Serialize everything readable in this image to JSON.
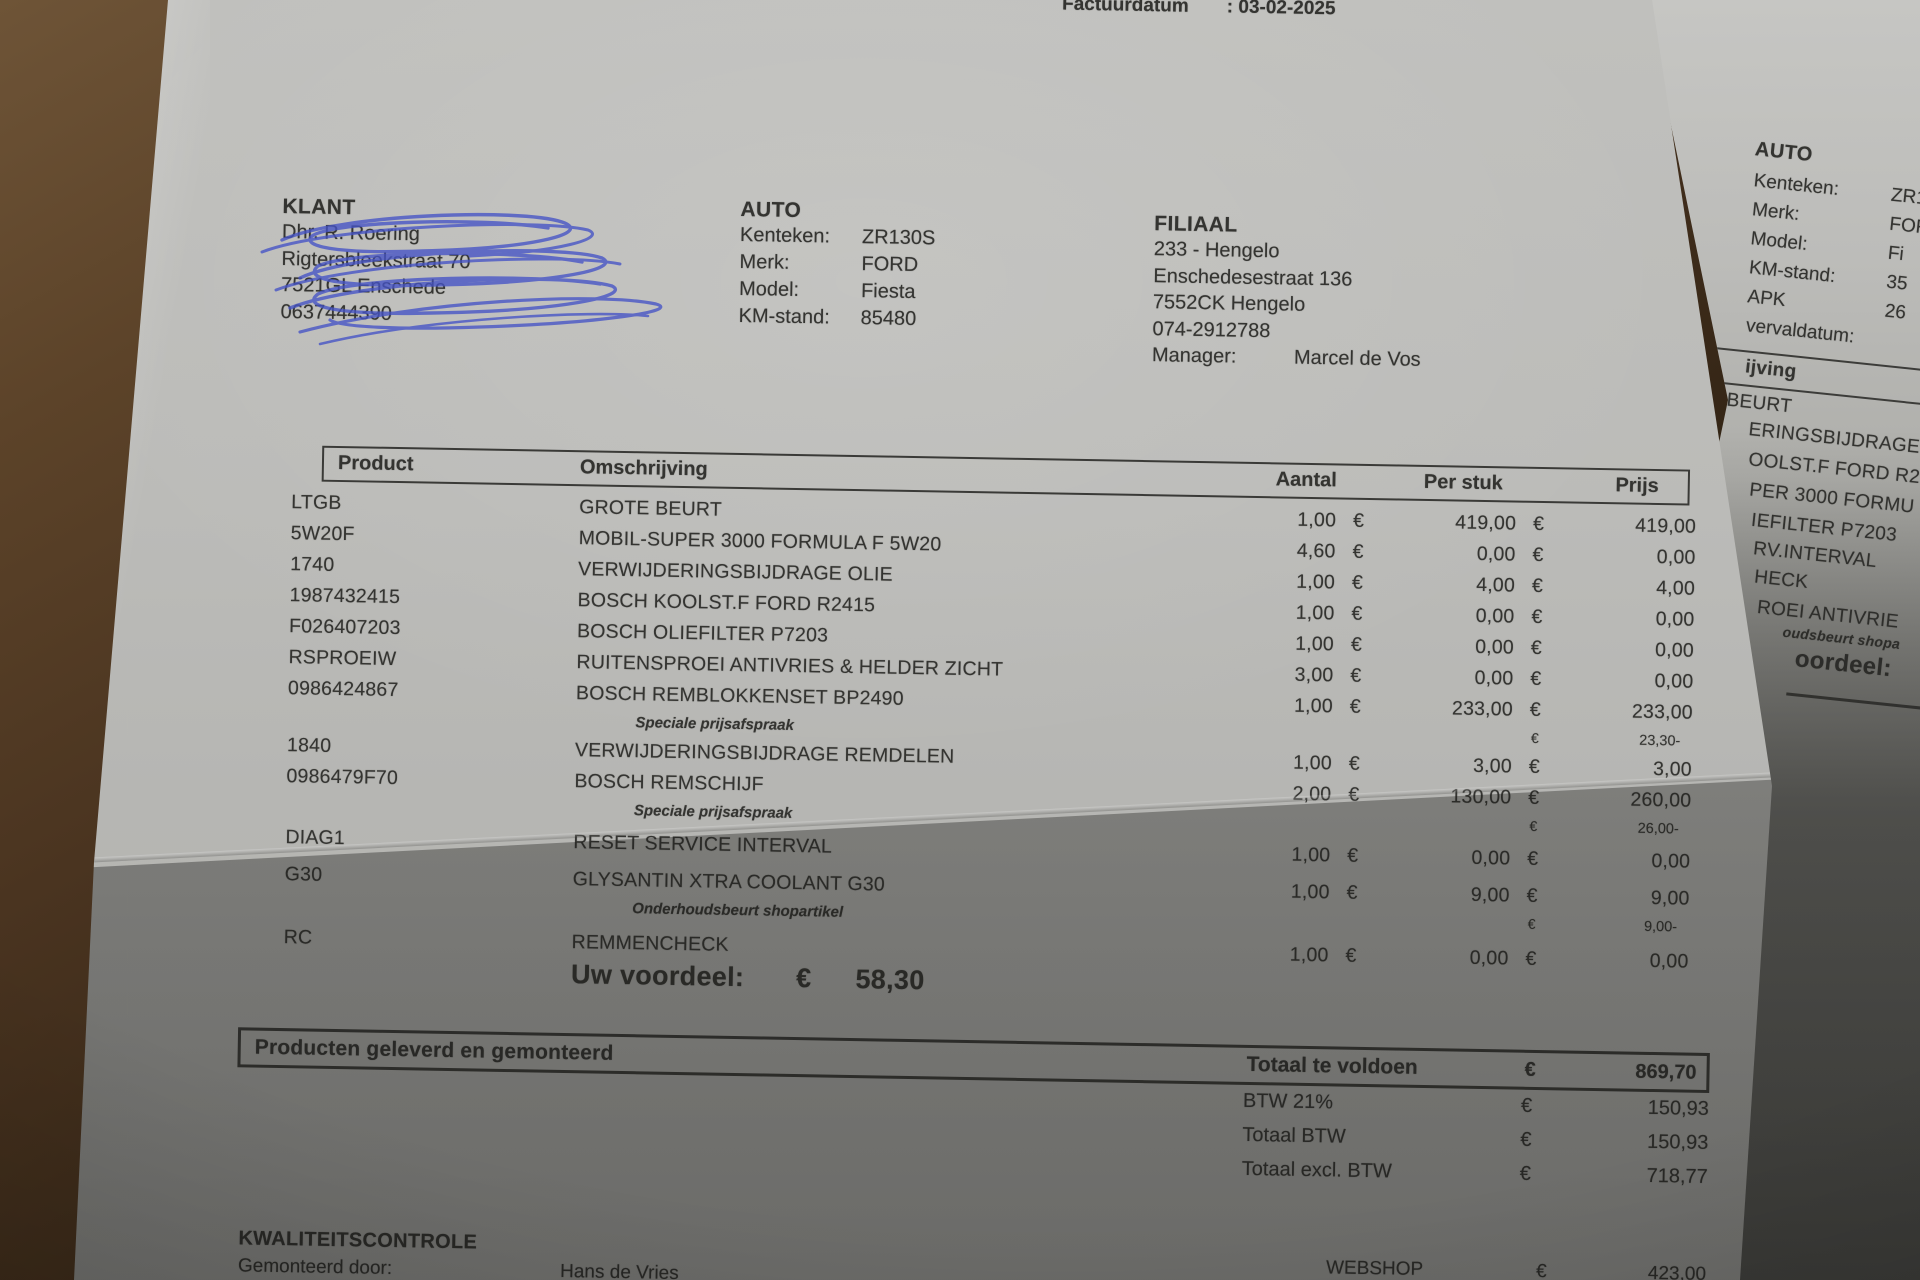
{
  "invoice_date": {
    "label": "Factuurdatum",
    "value": ": 03-02-2025"
  },
  "klant": {
    "title": "KLANT",
    "lines": [
      "Dhr. R. Roering",
      "Rigtersbleekstraat 70",
      "7521GL Enschede",
      "0637444390"
    ]
  },
  "auto": {
    "title": "AUTO",
    "rows": [
      {
        "label": "Kenteken:",
        "value": "ZR130S"
      },
      {
        "label": "Merk:",
        "value": "FORD"
      },
      {
        "label": "Model:",
        "value": "Fiesta"
      },
      {
        "label": "KM-stand:",
        "value": "85480"
      }
    ]
  },
  "filiaal": {
    "title": "FILIAAL",
    "lines": [
      "233 - Hengelo",
      "Enschedesestraat 136",
      "7552CK Hengelo",
      "074-2912788"
    ],
    "manager_label": "Manager:",
    "manager_value": "Marcel de Vos"
  },
  "table": {
    "euro": "€",
    "headers": {
      "product": "Product",
      "omschrijving": "Omschrijving",
      "aantal": "Aantal",
      "per_stuk": "Per stuk",
      "prijs": "Prijs"
    },
    "rows": [
      {
        "code": "LTGB",
        "desc": "GROTE BEURT",
        "qty": "1,00",
        "unit": "419,00",
        "price": "419,00"
      },
      {
        "code": "5W20F",
        "desc": "MOBIL-SUPER 3000 FORMULA F 5W20",
        "qty": "4,60",
        "unit": "0,00",
        "price": "0,00"
      },
      {
        "code": "1740",
        "desc": "VERWIJDERINGSBIJDRAGE OLIE",
        "qty": "1,00",
        "unit": "4,00",
        "price": "4,00"
      },
      {
        "code": "1987432415",
        "desc": "BOSCH KOOLST.F FORD R2415",
        "qty": "1,00",
        "unit": "0,00",
        "price": "0,00"
      },
      {
        "code": "F026407203",
        "desc": "BOSCH OLIEFILTER P7203",
        "qty": "1,00",
        "unit": "0,00",
        "price": "0,00"
      },
      {
        "code": "RSPROEIW",
        "desc": "RUITENSPROEI ANTIVRIES & HELDER ZICHT",
        "qty": "3,00",
        "unit": "0,00",
        "price": "0,00"
      },
      {
        "code": "0986424867",
        "desc": "BOSCH REMBLOKKENSET BP2490",
        "qty": "1,00",
        "unit": "233,00",
        "price": "233,00",
        "note": "Speciale prijsafspraak",
        "discount": "23,30-"
      },
      {
        "code": "1840",
        "desc": "VERWIJDERINGSBIJDRAGE REMDELEN",
        "qty": "1,00",
        "unit": "3,00",
        "price": "3,00"
      },
      {
        "code": "0986479F70",
        "desc": "BOSCH REMSCHIJF",
        "qty": "2,00",
        "unit": "130,00",
        "price": "260,00",
        "note": "Speciale prijsafspraak",
        "discount": "26,00-"
      },
      {
        "code": "DIAG1",
        "desc": "RESET SERVICE INTERVAL",
        "qty": "1,00",
        "unit": "0,00",
        "price": "0,00",
        "gap": "gap4"
      },
      {
        "code": "G30",
        "desc": "GLYSANTIN XTRA COOLANT G30",
        "qty": "1,00",
        "unit": "9,00",
        "price": "9,00",
        "note": "Onderhoudsbeurt shopartikel",
        "discount": "9,00-",
        "gap": "gap6"
      },
      {
        "code": "RC",
        "desc": "REMMENCHECK",
        "qty": "1,00",
        "unit": "0,00",
        "price": "0,00",
        "gap": "gap6"
      }
    ]
  },
  "voordeel": {
    "label": "Uw voordeel:",
    "currency": "€",
    "value": "58,30"
  },
  "totals": {
    "box_left": "Producten geleverd en gemonteerd",
    "box_right_label": "Totaal te voldoen",
    "currency": "€",
    "box_right_value": "869,70",
    "vat_lines": [
      {
        "label": "BTW 21%",
        "currency": "€",
        "value": "150,93"
      },
      {
        "label": "Totaal BTW",
        "currency": "€",
        "value": "150,93"
      },
      {
        "label": "Totaal excl. BTW",
        "currency": "€",
        "value": "718,77"
      }
    ]
  },
  "footer": {
    "title": "KWALITEITSCONTROLE",
    "monteur_label": "Gemonteerd door:",
    "monteur_value": "Hans de Vries",
    "webshop_label": "WEBSHOP",
    "webshop_currency": "€",
    "webshop_value": "423,00"
  },
  "second_page": {
    "auto_title": "AUTO",
    "auto_rows": [
      {
        "label": "Kenteken:",
        "value": "ZR1"
      },
      {
        "label": "Merk:",
        "value": "FOR"
      },
      {
        "label": "Model:",
        "value": "Fi"
      },
      {
        "label": "KM-stand:",
        "value": "35"
      },
      {
        "label": "APK",
        "value": "26"
      },
      {
        "label": "vervaldatum:",
        "value": ""
      }
    ],
    "fragments": [
      "ijving",
      "BEURT",
      "ERINGSBIJDRAGE",
      "OOLST.F FORD R2",
      "PER 3000 FORMU",
      "IEFILTER P7203",
      "RV.INTERVAL",
      "HECK",
      "ROEI ANTIVRIE",
      "oudsbeurt shopa",
      "oordeel:"
    ]
  },
  "colors": {
    "paper": "#bbbbb8",
    "ink": "#343431",
    "pen_blue": "#4553c6",
    "wood": "#4a3420"
  }
}
